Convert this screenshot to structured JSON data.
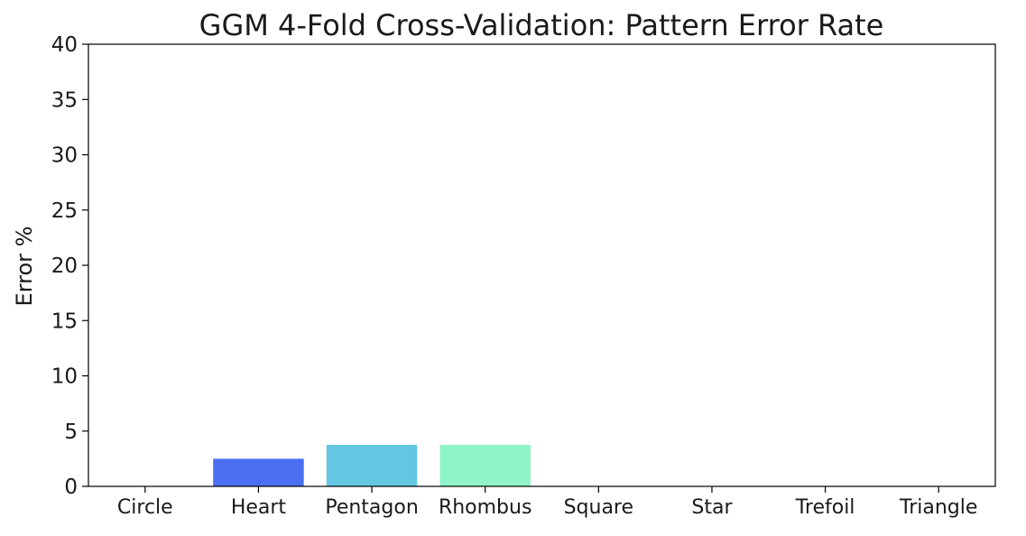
{
  "chart_data": {
    "type": "bar",
    "title": "GGM 4-Fold Cross-Validation: Pattern Error Rate",
    "xlabel": "",
    "ylabel": "Error %",
    "ylim": [
      0,
      40
    ],
    "yticks": [
      0,
      5,
      10,
      15,
      20,
      25,
      30,
      35,
      40
    ],
    "grid": false,
    "legend": "none",
    "categories": [
      "Circle",
      "Heart",
      "Pentagon",
      "Rhombus",
      "Square",
      "Star",
      "Trefoil",
      "Triangle"
    ],
    "values": [
      0,
      2.5,
      3.75,
      3.75,
      0,
      0,
      0,
      0
    ],
    "colors": [
      "#2c1fff",
      "#4a6ff2",
      "#63c6e2",
      "#8ff4c8",
      "#b9f0a0",
      "#e0d080",
      "#f09e60",
      "#ff5a3c"
    ]
  }
}
